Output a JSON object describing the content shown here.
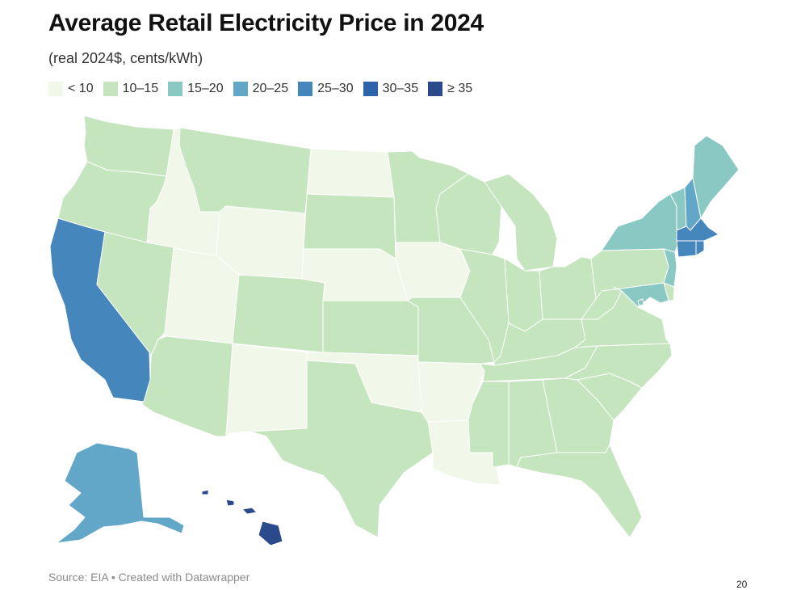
{
  "title": "Average Retail Electricity Price in 2024",
  "subtitle": "(real 2024$, cents/kWh)",
  "legend": [
    {
      "label": "< 10",
      "color": "#f2f8e9"
    },
    {
      "label": "10–15",
      "color": "#c4e5be"
    },
    {
      "label": "15–20",
      "color": "#8ac8c3"
    },
    {
      "label": "20–25",
      "color": "#62a7c8"
    },
    {
      "label": "25–30",
      "color": "#4586bd"
    },
    {
      "label": "30–35",
      "color": "#2d63a9"
    },
    {
      "label": "≥ 35",
      "color": "#2a4a8c"
    }
  ],
  "source": "Source: EIA • Created with Datawrapper",
  "page_number": "20",
  "states": {
    "WA": "10–15",
    "OR": "10–15",
    "CA": "25–30",
    "NV": "10–15",
    "ID": "< 10",
    "MT": "10–15",
    "WY": "< 10",
    "UT": "< 10",
    "AZ": "10–15",
    "CO": "10–15",
    "NM": "< 10",
    "ND": "< 10",
    "SD": "10–15",
    "NE": "< 10",
    "KS": "10–15",
    "OK": "< 10",
    "TX": "10–15",
    "MN": "10–15",
    "IA": "< 10",
    "MO": "10–15",
    "AR": "< 10",
    "LA": "< 10",
    "WI": "10–15",
    "IL": "10–15",
    "MI": "10–15",
    "IN": "10–15",
    "OH": "10–15",
    "KY": "10–15",
    "TN": "10–15",
    "MS": "10–15",
    "AL": "10–15",
    "GA": "10–15",
    "FL": "10–15",
    "SC": "10–15",
    "NC": "10–15",
    "VA": "10–15",
    "WV": "10–15",
    "PA": "10–15",
    "NY": "15–20",
    "VT": "15–20",
    "NH": "20–25",
    "ME": "15–20",
    "MA": "25–30",
    "RI": "25–30",
    "CT": "25–30",
    "NJ": "15–20",
    "DE": "10–15",
    "MD": "15–20",
    "DC": "15–20",
    "AK": "20–25",
    "HI": "≥ 35"
  }
}
